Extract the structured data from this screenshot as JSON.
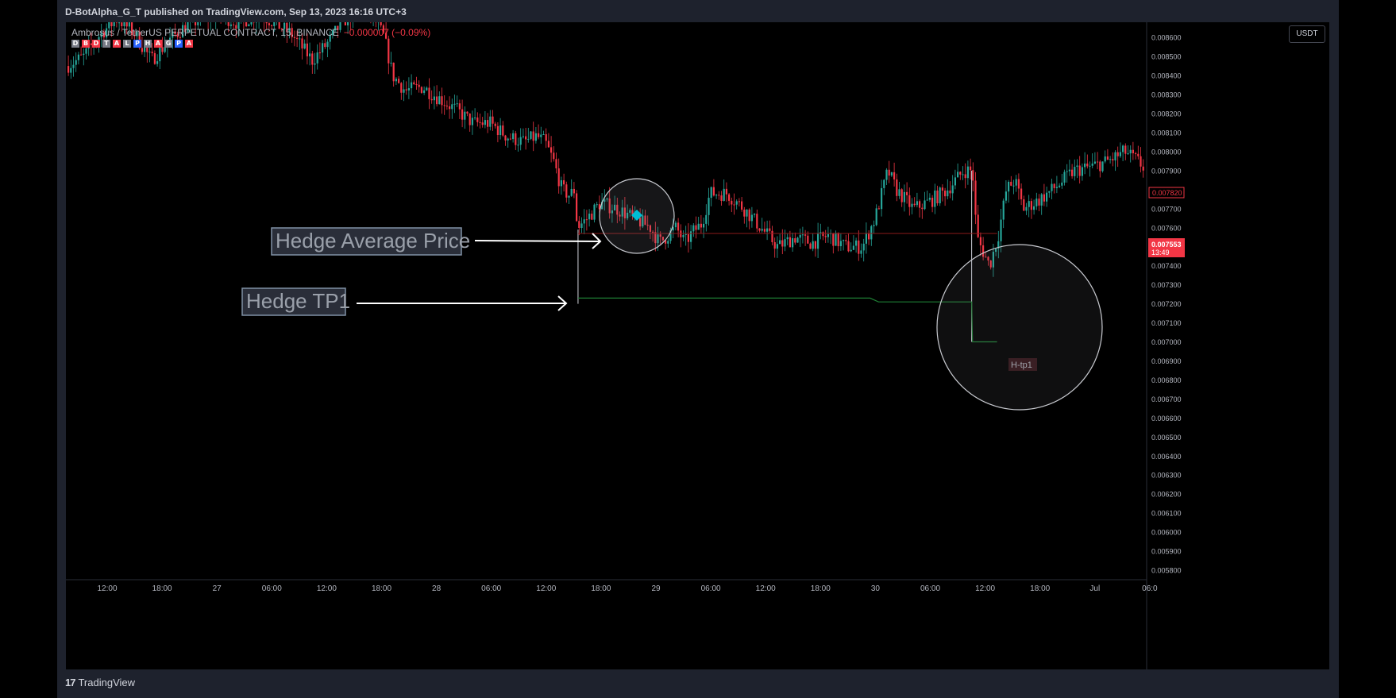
{
  "header": {
    "publish_line": "D-BotAlpha_G_T published on TradingView.com, Sep 13, 2023 16:16 UTC+3"
  },
  "legend": {
    "symbol_line": "Ambrosus / TetherUS PERPETUAL CONTRACT, 15, BINANCE",
    "change": "−0.000007 (−0.09%)",
    "badges": [
      {
        "t": "D",
        "c": "#787b86"
      },
      {
        "t": "B",
        "c": "#f23645"
      },
      {
        "t": "D",
        "c": "#f23645"
      },
      {
        "t": "T",
        "c": "#787b86"
      },
      {
        "t": "A",
        "c": "#f23645"
      },
      {
        "t": "L",
        "c": "#787b86"
      },
      {
        "t": "P",
        "c": "#2962ff"
      },
      {
        "t": "H",
        "c": "#787b86"
      },
      {
        "t": "A",
        "c": "#f23645"
      },
      {
        "t": "G",
        "c": "#787b86"
      },
      {
        "t": "P",
        "c": "#2962ff"
      },
      {
        "t": "A",
        "c": "#f23645"
      }
    ]
  },
  "currency_button": "USDT",
  "price_axis": {
    "labels": [
      "0.008600",
      "0.008500",
      "0.008400",
      "0.008300",
      "0.008200",
      "0.008100",
      "0.008000",
      "0.007900",
      "0.007800",
      "0.007700",
      "0.007600",
      "0.007500",
      "0.007400",
      "0.007300",
      "0.007200",
      "0.007100",
      "0.007000",
      "0.006900",
      "0.006800",
      "0.006700",
      "0.006600",
      "0.006500",
      "0.006400",
      "0.006300",
      "0.006200",
      "0.006100",
      "0.006000",
      "0.005900",
      "0.005800"
    ],
    "last_price": "0.007553",
    "countdown": "13:49",
    "marker_price": "0.007820"
  },
  "time_axis": {
    "labels": [
      "12:00",
      "18:00",
      "27",
      "06:00",
      "12:00",
      "18:00",
      "28",
      "06:00",
      "12:00",
      "18:00",
      "29",
      "06:00",
      "12:00",
      "18:00",
      "30",
      "06:00",
      "12:00",
      "18:00",
      "Jul",
      "06:0"
    ]
  },
  "annotations": {
    "hedge_avg_label": "Hedge Average Price",
    "hedge_tp1_label": "Hedge TP1",
    "htp1_tag": "H-tp1"
  },
  "footer": {
    "brand": "TradingView"
  },
  "colors": {
    "up": "#26a69a",
    "down": "#f23645",
    "avg_line": "#8b1a1a",
    "tp_line": "#1e7e34",
    "accent_diamond": "#00bcd4"
  },
  "chart_data": {
    "type": "candlestick",
    "symbol": "Ambrosus / TetherUS PERPETUAL CONTRACT",
    "interval": "15",
    "exchange": "BINANCE",
    "ylim": [
      0.00575,
      0.00868
    ],
    "path": [
      [
        0.0,
        0.00845
      ],
      [
        0.02,
        0.0085
      ],
      [
        0.04,
        0.00862
      ],
      [
        0.06,
        0.0087
      ],
      [
        0.08,
        0.00862
      ],
      [
        0.1,
        0.00848
      ],
      [
        0.12,
        0.00858
      ],
      [
        0.14,
        0.00866
      ],
      [
        0.16,
        0.0087
      ],
      [
        0.18,
        0.00872
      ],
      [
        0.2,
        0.00868
      ],
      [
        0.23,
        0.00872
      ],
      [
        0.265,
        0.00862
      ],
      [
        0.29,
        0.00848
      ],
      [
        0.31,
        0.00858
      ],
      [
        0.325,
        0.00868
      ],
      [
        0.345,
        0.00875
      ],
      [
        0.36,
        0.00872
      ],
      [
        0.375,
        0.0086
      ],
      [
        0.385,
        0.0084
      ],
      [
        0.4,
        0.00832
      ],
      [
        0.42,
        0.00834
      ],
      [
        0.44,
        0.00828
      ],
      [
        0.46,
        0.00822
      ],
      [
        0.48,
        0.00815
      ],
      [
        0.5,
        0.00815
      ],
      [
        0.52,
        0.00808
      ],
      [
        0.54,
        0.00805
      ],
      [
        0.555,
        0.00808
      ],
      [
        0.565,
        0.00805
      ],
      [
        0.575,
        0.00795
      ],
      [
        0.585,
        0.0078
      ],
      [
        0.594,
        0.00777
      ],
      [
        0.6,
        0.0078
      ],
      [
        0.603,
        0.0076
      ],
      [
        0.615,
        0.00765
      ],
      [
        0.63,
        0.00773
      ],
      [
        0.65,
        0.0077
      ],
      [
        0.67,
        0.00765
      ],
      [
        0.69,
        0.0076
      ],
      [
        0.7,
        0.00752
      ],
      [
        0.72,
        0.0076
      ],
      [
        0.73,
        0.00752
      ],
      [
        0.74,
        0.00758
      ],
      [
        0.75,
        0.00762
      ],
      [
        0.76,
        0.00778
      ],
      [
        0.78,
        0.00778
      ],
      [
        0.8,
        0.0077
      ],
      [
        0.82,
        0.0076
      ],
      [
        0.84,
        0.0075
      ],
      [
        0.86,
        0.00755
      ],
      [
        0.88,
        0.00752
      ],
      [
        0.9,
        0.00756
      ],
      [
        0.92,
        0.0075
      ],
      [
        0.94,
        0.0075
      ],
      [
        0.955,
        0.00765
      ],
      [
        0.97,
        0.0079
      ],
      [
        0.98,
        0.0078
      ],
      [
        1.0,
        0.0077
      ],
      [
        1.02,
        0.00774
      ],
      [
        1.04,
        0.0078
      ],
      [
        1.06,
        0.0079
      ],
      [
        1.07,
        0.0079
      ],
      [
        1.075,
        0.00755
      ],
      [
        1.08,
        0.0075
      ],
      [
        1.09,
        0.0074
      ],
      [
        1.1,
        0.00755
      ],
      [
        1.11,
        0.0078
      ],
      [
        1.12,
        0.00785
      ],
      [
        1.13,
        0.0077
      ],
      [
        1.15,
        0.00775
      ],
      [
        1.17,
        0.00782
      ],
      [
        1.19,
        0.0079
      ],
      [
        1.21,
        0.00792
      ],
      [
        1.23,
        0.00795
      ],
      [
        1.25,
        0.008
      ],
      [
        1.265,
        0.00795
      ],
      [
        1.28,
        0.00788
      ]
    ],
    "hedge_average_price": 0.00757,
    "hedge_tp1_levels": [
      [
        0.605,
        0.00723
      ],
      [
        0.95,
        0.00723
      ],
      [
        0.96,
        0.00721
      ],
      [
        1.07,
        0.00721
      ],
      [
        1.071,
        0.007
      ],
      [
        1.1,
        0.007
      ]
    ],
    "last_price": 0.007553,
    "marker_price": 0.00782
  }
}
